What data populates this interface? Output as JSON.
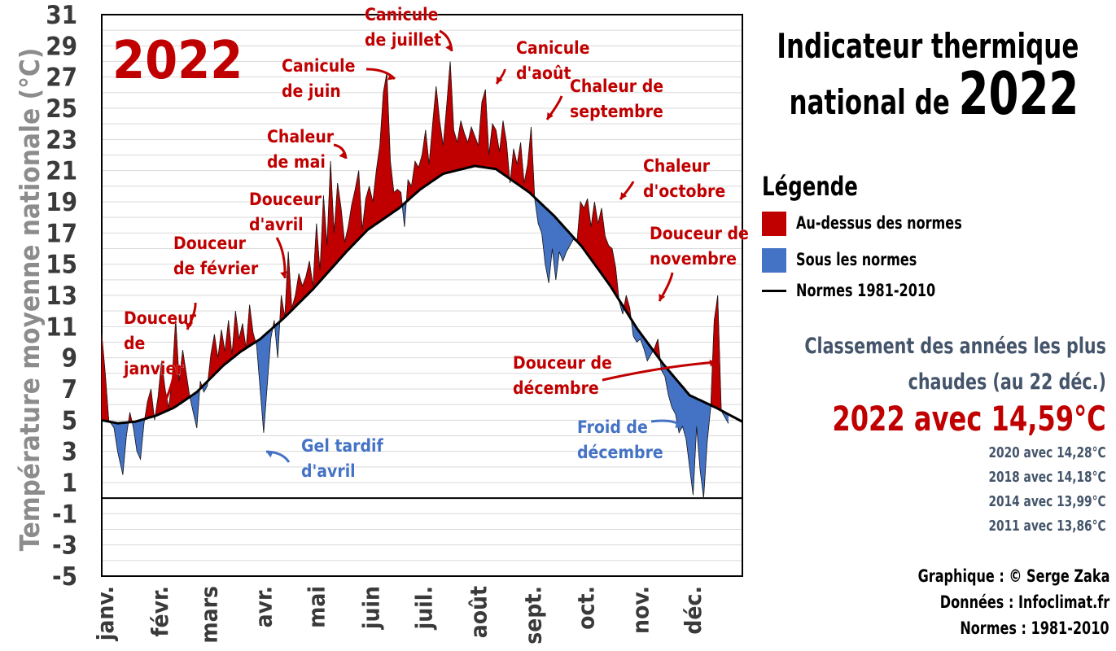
{
  "header": {
    "title_line1": "Indicateur thermique",
    "title_line2_prefix": "national de ",
    "title_year": "2022"
  },
  "legend": {
    "title": "Légende",
    "items": [
      {
        "label": "Au-dessus des normes",
        "color": "#c00000"
      },
      {
        "label": "Sous les normes",
        "color": "#4472c4"
      },
      {
        "label": "Normes 1981-2010",
        "color": "#000000"
      }
    ]
  },
  "ranking": {
    "title_line1": "Classement des années les plus",
    "title_line2": "chaudes (au 22 déc.)",
    "top": "2022 avec 14,59°C",
    "others": [
      "2020 avec 14,28°C",
      "2018 avec 14,18°C",
      "2014 avec 13,99°C",
      "2011 avec 13,86°C"
    ]
  },
  "credits": [
    "Graphique : © Serge Zaka",
    "Données : Infoclimat.fr",
    "Normes : 1981-2010"
  ],
  "chart_data": {
    "type": "area",
    "year_label": "2022",
    "ylabel": "Température moyenne nationale (°C)",
    "ylim": [
      -5,
      31
    ],
    "yticks": [
      "31",
      "29",
      "27",
      "25",
      "23",
      "21",
      "19",
      "17",
      "15",
      "13",
      "11",
      "9",
      "7",
      "5",
      "3",
      "1",
      "-1",
      "-3",
      "-5"
    ],
    "months": [
      "janv.",
      "févr.",
      "mars",
      "avr.",
      "mai",
      "juin",
      "juil.",
      "août",
      "sept.",
      "oct.",
      "nov.",
      "déc."
    ],
    "grid": true,
    "colors": {
      "above": "#c00000",
      "below": "#4472c4",
      "normal": "#000000"
    },
    "normal_series": {
      "name": "Normes 1981-2010",
      "day": [
        1,
        10,
        20,
        32,
        42,
        55,
        70,
        80,
        91,
        105,
        121,
        140,
        152,
        170,
        182,
        195,
        213,
        225,
        244,
        258,
        274,
        290,
        305,
        320,
        335,
        350,
        365
      ],
      "value": [
        5.0,
        4.8,
        4.9,
        5.3,
        5.8,
        6.8,
        8.5,
        9.4,
        10.2,
        11.6,
        13.4,
        15.8,
        17.2,
        18.6,
        19.8,
        20.8,
        21.3,
        21.1,
        19.6,
        18.1,
        16.1,
        13.6,
        10.9,
        8.6,
        6.6,
        5.8,
        4.9
      ]
    },
    "observed_series": {
      "name": "2022",
      "day": [
        1,
        3,
        5,
        8,
        10,
        13,
        15,
        17,
        19,
        21,
        23,
        25,
        27,
        29,
        31,
        33,
        35,
        37,
        39,
        41,
        43,
        45,
        47,
        49,
        51,
        53,
        55,
        57,
        59,
        61,
        63,
        65,
        67,
        69,
        71,
        73,
        75,
        77,
        79,
        81,
        83,
        85,
        87,
        89,
        91,
        93,
        95,
        97,
        99,
        101,
        103,
        105,
        107,
        109,
        111,
        113,
        115,
        117,
        119,
        121,
        123,
        125,
        127,
        129,
        131,
        133,
        135,
        137,
        139,
        141,
        143,
        145,
        147,
        149,
        151,
        153,
        155,
        157,
        159,
        161,
        163,
        165,
        167,
        169,
        171,
        173,
        175,
        177,
        179,
        181,
        183,
        185,
        187,
        189,
        191,
        193,
        195,
        197,
        199,
        201,
        203,
        205,
        207,
        209,
        211,
        213,
        215,
        217,
        219,
        221,
        223,
        225,
        227,
        229,
        231,
        233,
        235,
        237,
        239,
        241,
        243,
        245,
        247,
        249,
        251,
        253,
        255,
        257,
        259,
        261,
        263,
        265,
        267,
        269,
        271,
        273,
        275,
        277,
        279,
        281,
        283,
        285,
        287,
        289,
        291,
        293,
        295,
        297,
        299,
        301,
        303,
        305,
        307,
        309,
        311,
        313,
        315,
        317,
        319,
        321,
        323,
        325,
        327,
        329,
        331,
        333,
        335,
        337,
        339,
        341,
        343,
        345,
        347,
        349,
        351,
        353,
        355,
        357,
        359,
        361,
        363,
        365
      ],
      "value": [
        10.5,
        8.0,
        5.0,
        4.5,
        3.0,
        1.5,
        4.0,
        5.5,
        4.5,
        3.0,
        2.5,
        4.8,
        6.2,
        7.0,
        5.0,
        6.5,
        8.8,
        7.0,
        5.8,
        7.6,
        11.5,
        7.5,
        9.5,
        8.0,
        6.5,
        5.5,
        4.5,
        7.5,
        6.8,
        7.2,
        9.2,
        10.5,
        9.0,
        10.8,
        9.4,
        11.4,
        9.2,
        12.0,
        10.2,
        11.2,
        9.6,
        12.4,
        10.6,
        9.8,
        7.0,
        4.2,
        7.2,
        10.2,
        11.4,
        9.0,
        13.0,
        11.6,
        15.8,
        12.2,
        13.0,
        14.4,
        13.6,
        14.2,
        15.2,
        13.6,
        17.6,
        14.6,
        19.4,
        16.2,
        21.6,
        17.0,
        20.2,
        18.6,
        16.4,
        17.4,
        18.8,
        19.8,
        21.0,
        17.2,
        19.2,
        20.0,
        19.0,
        21.0,
        22.6,
        26.0,
        27.3,
        21.6,
        19.6,
        19.8,
        19.6,
        17.4,
        20.4,
        20.0,
        21.6,
        21.2,
        22.0,
        23.6,
        21.4,
        24.0,
        26.4,
        24.2,
        22.6,
        25.2,
        28.0,
        23.6,
        22.8,
        24.2,
        23.4,
        22.8,
        23.8,
        23.2,
        22.6,
        25.4,
        26.2,
        22.0,
        24.0,
        23.6,
        22.2,
        24.2,
        22.8,
        20.2,
        22.4,
        21.4,
        22.8,
        20.2,
        21.4,
        23.8,
        19.2,
        17.6,
        17.0,
        15.0,
        13.8,
        16.0,
        14.0,
        15.8,
        15.2,
        15.8,
        16.2,
        16.6,
        16.4,
        19.0,
        18.6,
        19.2,
        17.4,
        19.0,
        17.6,
        18.6,
        16.8,
        16.2,
        16.0,
        14.8,
        12.6,
        11.8,
        13.0,
        12.2,
        10.4,
        10.0,
        10.2,
        9.6,
        8.8,
        9.2,
        9.6,
        10.2,
        8.2,
        7.8,
        6.6,
        5.8,
        5.4,
        4.2,
        4.6,
        3.8,
        2.0,
        0.2,
        4.6,
        1.8,
        0.0,
        3.6,
        5.8,
        11.4,
        13.0,
        5.6,
        5.2,
        4.8
      ]
    },
    "annotations": [
      {
        "text": "Douceur\nde\njanvier",
        "color": "red"
      },
      {
        "text": "Douceur\nde février",
        "color": "red"
      },
      {
        "text": "Douceur\nd'avril",
        "color": "red"
      },
      {
        "text": "Chaleur\nde mai",
        "color": "red"
      },
      {
        "text": "Canicule\nde juin",
        "color": "red"
      },
      {
        "text": "Canicule\nde juillet",
        "color": "red"
      },
      {
        "text": "Canicule\nd'août",
        "color": "red"
      },
      {
        "text": "Chaleur de\nseptembre",
        "color": "red"
      },
      {
        "text": "Chaleur\nd'octobre",
        "color": "red"
      },
      {
        "text": "Douceur de\nnovembre",
        "color": "red"
      },
      {
        "text": "Douceur de\ndécembre",
        "color": "red"
      },
      {
        "text": "Gel tardif\nd'avril",
        "color": "blue"
      },
      {
        "text": "Froid de\ndécembre",
        "color": "blue"
      }
    ]
  }
}
